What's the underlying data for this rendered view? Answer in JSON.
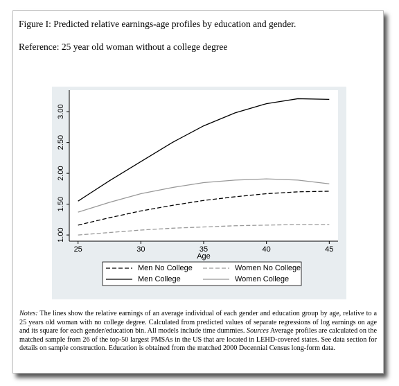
{
  "header": {
    "title": "Figure I: Predicted relative earnings-age profiles by education and gender.",
    "reference": "Reference:  25 year old woman without a college degree"
  },
  "chart_data": {
    "type": "line",
    "x_label": "Age",
    "x": [
      25,
      27.5,
      30,
      32.5,
      35,
      37.5,
      40,
      42.5,
      45
    ],
    "series": [
      {
        "name": "Men No College",
        "color": "#000000",
        "style": "dashed",
        "values": [
          1.16,
          1.28,
          1.39,
          1.48,
          1.56,
          1.62,
          1.67,
          1.7,
          1.71
        ]
      },
      {
        "name": "Women No College",
        "color": "#999999",
        "style": "dashed",
        "values": [
          1.0,
          1.04,
          1.08,
          1.11,
          1.13,
          1.15,
          1.16,
          1.17,
          1.17
        ]
      },
      {
        "name": "Men College",
        "color": "#000000",
        "style": "solid",
        "values": [
          1.55,
          1.88,
          2.19,
          2.5,
          2.77,
          2.98,
          3.13,
          3.21,
          3.2
        ]
      },
      {
        "name": "Women College",
        "color": "#999999",
        "style": "solid",
        "values": [
          1.37,
          1.53,
          1.67,
          1.77,
          1.85,
          1.89,
          1.91,
          1.89,
          1.83
        ]
      }
    ],
    "xlim": [
      24.3,
      45.7
    ],
    "xticks": [
      25,
      30,
      35,
      40,
      45
    ],
    "ylim": [
      0.9,
      3.35
    ],
    "yticks": [
      {
        "value": 1,
        "label": "1.00"
      },
      {
        "value": 1.5,
        "label": "1.50"
      },
      {
        "value": 2,
        "label": "2.00"
      },
      {
        "value": 2.5,
        "label": "2.50"
      },
      {
        "value": 3,
        "label": "3.00"
      }
    ],
    "grid": false,
    "legend": "bottom"
  },
  "notes": {
    "label": "Notes:",
    "text": " The lines show the relative earnings of an average individual of each gender and education group by age, relative to a 25 years old woman with no college degree. Calculated from predicted values of separate regressions of log earnings on age and its square for each gender/education bin. All models include time dummies. ",
    "sources_label": "Sources",
    "sources_text": " Average profiles are calculated on the matched sample from 26 of the top-50 largest PMSAs in the US that are located in LEHD-covered states. See data section for details on sample construction. Education is obtained from the matched 2000 Decennial Census long-form data."
  }
}
